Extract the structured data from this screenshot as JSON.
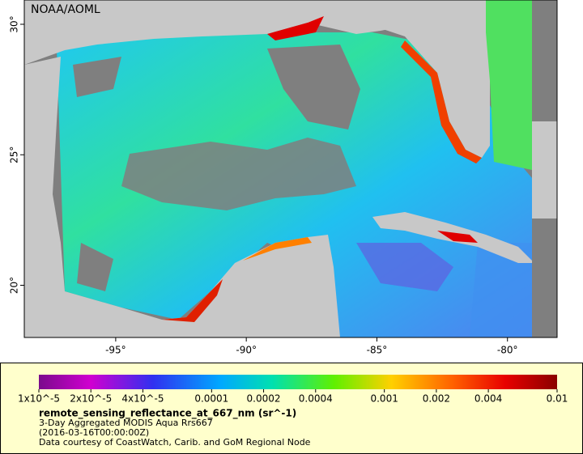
{
  "credit": "NOAA/AOML",
  "map": {
    "lon_range": [
      -98.5,
      -78.1
    ],
    "lat_range": [
      18.0,
      30.93
    ],
    "lon_ticks": [
      {
        "value": -95,
        "label": "-95°"
      },
      {
        "value": -90,
        "label": "-90°"
      },
      {
        "value": -85,
        "label": "-85°"
      },
      {
        "value": -80,
        "label": "-80°"
      }
    ],
    "lat_ticks": [
      {
        "value": 30,
        "label": "30°"
      },
      {
        "value": 25,
        "label": "25°"
      },
      {
        "value": 20,
        "label": "20°"
      }
    ]
  },
  "colorbar": {
    "log": true,
    "range": [
      1e-05,
      0.01
    ],
    "ticks": [
      {
        "value": 1e-05,
        "label": "1x10^-5"
      },
      {
        "value": 2e-05,
        "label": "2x10^-5"
      },
      {
        "value": 4e-05,
        "label": "4x10^-5"
      },
      0.0001,
      0.0002,
      0.0004,
      0.001,
      0.002,
      0.004,
      0.01
    ]
  },
  "legend": {
    "variable": "remote_sensing_reflectance_at_667_nm (sr^-1)",
    "lines": [
      "3-Day Aggregated MODIS Aqua Rrs667",
      "(2016-03-16T00:00:00Z)",
      "Data courtesy of CoastWatch, Carib. and GoM Regional Node"
    ]
  }
}
